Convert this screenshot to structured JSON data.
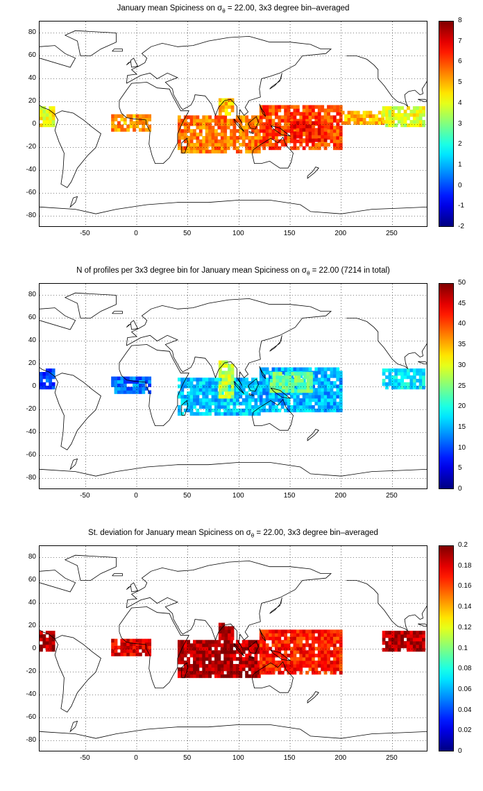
{
  "chart_data": [
    {
      "type": "heatmap",
      "title_pre": "January ",
      "title_mean": "mean",
      "title_mid": " Spiciness on ",
      "title_sigma": "σ",
      "title_sub": "θ",
      "title_post": " = 22.00, 3x3 degree bin–averaged",
      "xlim": [
        -95,
        285
      ],
      "ylim": [
        -90,
        90
      ],
      "xticks": [
        "-50",
        "0",
        "50",
        "100",
        "150",
        "200",
        "250"
      ],
      "yticks": [
        "80",
        "60",
        "40",
        "20",
        "0",
        "-20",
        "-40",
        "-60",
        "-80"
      ],
      "grid": true,
      "colorbar": {
        "min": -2,
        "max": 8,
        "ticks": [
          "8",
          "7",
          "6",
          "5",
          "4",
          "3",
          "2",
          "1",
          "0",
          "-1",
          "-2"
        ]
      },
      "regions": [
        {
          "lon": [
            -95,
            -80
          ],
          "lat": [
            -2,
            14
          ],
          "value": 4.2
        },
        {
          "lon": [
            -25,
            12
          ],
          "lat": [
            -6,
            9
          ],
          "value": 5.3
        },
        {
          "lon": [
            40,
            120
          ],
          "lat": [
            -25,
            8
          ],
          "value": 5.6
        },
        {
          "lon": [
            80,
            95
          ],
          "lat": [
            8,
            22
          ],
          "value": 4.8
        },
        {
          "lon": [
            120,
            200
          ],
          "lat": [
            -22,
            15
          ],
          "value": 6.1
        },
        {
          "lon": [
            150,
            185
          ],
          "lat": [
            -15,
            2
          ],
          "value": 6.6
        },
        {
          "lon": [
            200,
            240
          ],
          "lat": [
            0,
            12
          ],
          "value": 5.0
        },
        {
          "lon": [
            240,
            280
          ],
          "lat": [
            -2,
            14
          ],
          "value": 4.0
        }
      ]
    },
    {
      "type": "heatmap",
      "title_pre": "N of profiles per 3x3 degree bin for January ",
      "title_mean": "mean",
      "title_mid": " Spiciness on ",
      "title_sigma": "σ",
      "title_sub": "θ",
      "title_post": " = 22.00 (7214 in total)",
      "xlim": [
        -95,
        285
      ],
      "ylim": [
        -90,
        90
      ],
      "xticks": [
        "-50",
        "0",
        "50",
        "100",
        "150",
        "200",
        "250"
      ],
      "yticks": [
        "80",
        "60",
        "40",
        "20",
        "0",
        "-20",
        "-40",
        "-60",
        "-80"
      ],
      "grid": true,
      "colorbar": {
        "min": 0,
        "max": 50,
        "ticks": [
          "50",
          "45",
          "40",
          "35",
          "30",
          "25",
          "20",
          "15",
          "10",
          "5",
          "0"
        ]
      },
      "regions": [
        {
          "lon": [
            -95,
            -80
          ],
          "lat": [
            -2,
            14
          ],
          "value": 10
        },
        {
          "lon": [
            -25,
            12
          ],
          "lat": [
            -6,
            9
          ],
          "value": 12
        },
        {
          "lon": [
            40,
            120
          ],
          "lat": [
            -25,
            8
          ],
          "value": 16
        },
        {
          "lon": [
            80,
            95
          ],
          "lat": [
            -10,
            22
          ],
          "value": 28
        },
        {
          "lon": [
            120,
            200
          ],
          "lat": [
            -22,
            15
          ],
          "value": 15
        },
        {
          "lon": [
            130,
            170
          ],
          "lat": [
            -5,
            12
          ],
          "value": 24
        },
        {
          "lon": [
            240,
            280
          ],
          "lat": [
            -2,
            14
          ],
          "value": 18
        }
      ]
    },
    {
      "type": "heatmap",
      "title_pre": "St. deviation for January ",
      "title_mean": "mean",
      "title_mid": " Spiciness on ",
      "title_sigma": "σ",
      "title_sub": "θ",
      "title_post": " = 22.00, 3x3 degree bin–averaged",
      "xlim": [
        -95,
        285
      ],
      "ylim": [
        -90,
        90
      ],
      "xticks": [
        "-50",
        "0",
        "50",
        "100",
        "150",
        "200",
        "250"
      ],
      "yticks": [
        "80",
        "60",
        "40",
        "20",
        "0",
        "-20",
        "-40",
        "-60",
        "-80"
      ],
      "grid": true,
      "colorbar": {
        "min": 0,
        "max": 0.2,
        "ticks": [
          "0.2",
          "0.18",
          "0.16",
          "0.14",
          "0.12",
          "0.1",
          "0.08",
          "0.06",
          "0.04",
          "0.02",
          "0"
        ]
      },
      "regions": [
        {
          "lon": [
            -95,
            -80
          ],
          "lat": [
            -2,
            14
          ],
          "value": 0.19
        },
        {
          "lon": [
            -25,
            12
          ],
          "lat": [
            -6,
            9
          ],
          "value": 0.18
        },
        {
          "lon": [
            40,
            120
          ],
          "lat": [
            -25,
            8
          ],
          "value": 0.19
        },
        {
          "lon": [
            80,
            95
          ],
          "lat": [
            8,
            22
          ],
          "value": 0.19
        },
        {
          "lon": [
            120,
            200
          ],
          "lat": [
            -22,
            15
          ],
          "value": 0.17
        },
        {
          "lon": [
            240,
            280
          ],
          "lat": [
            -2,
            14
          ],
          "value": 0.19
        }
      ]
    }
  ]
}
